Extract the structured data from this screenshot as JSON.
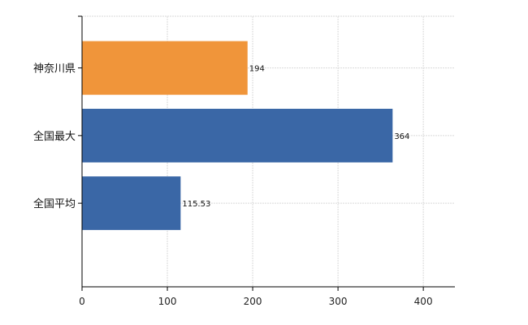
{
  "chart_data": {
    "type": "bar",
    "orientation": "horizontal",
    "categories": [
      "神奈川県",
      "全国最大",
      "全国平均"
    ],
    "values": [
      194,
      364,
      115.53
    ],
    "value_labels": [
      "194",
      "364",
      "115.53"
    ],
    "xlim": [
      0,
      437
    ],
    "x_ticks": [
      0,
      100,
      200,
      300,
      400
    ],
    "grid": true,
    "title": "",
    "xlabel": "",
    "ylabel": "",
    "colors": {
      "神奈川県": "#f0953a",
      "全国最大": "#3a67a6",
      "全国平均": "#3a67a6"
    }
  }
}
